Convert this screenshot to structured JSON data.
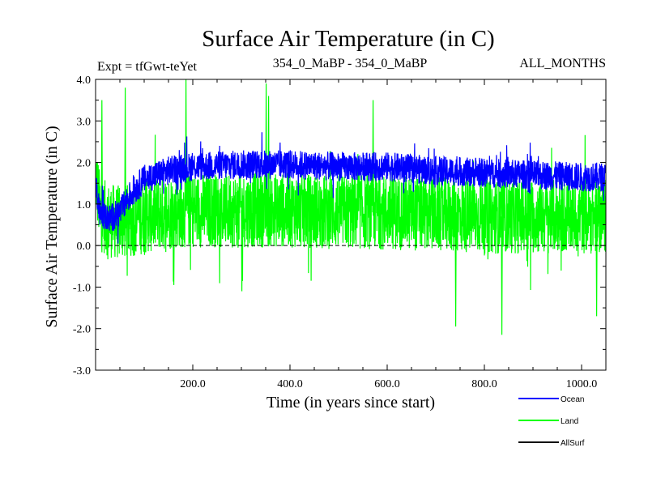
{
  "chart_data": {
    "type": "line",
    "title": "Surface Air Temperature (in C)",
    "subtitle_left": "Expt = tfGwt-teYet",
    "subtitle_center": "354_0_MaBP - 354_0_MaBP",
    "subtitle_right": "ALL_MONTHS",
    "xlabel": "Time (in years since start)",
    "ylabel": "Surface Air Temperature (in C)",
    "xlim": [
      0,
      1050
    ],
    "ylim": [
      -3.0,
      4.0
    ],
    "xticks": [
      200,
      400,
      600,
      800,
      1000
    ],
    "xtick_labels": [
      "200.0",
      "400.0",
      "600.0",
      "800.0",
      "1000.0"
    ],
    "yticks": [
      -3,
      -2,
      -1,
      0,
      1,
      2,
      3,
      4
    ],
    "ytick_labels": [
      "-3.0",
      "-2.0",
      "-1.0",
      "0.0",
      "1.0",
      "2.0",
      "3.0",
      "4.0"
    ],
    "reference_line_y": 0.0,
    "legend_position": "bottom-right",
    "series": [
      {
        "name": "Ocean",
        "color": "#0000ff",
        "mean_x": [
          0,
          10,
          30,
          50,
          70,
          100,
          150,
          200,
          300,
          400,
          500,
          600,
          700,
          800,
          900,
          1000,
          1050
        ],
        "mean_y": [
          1.5,
          0.75,
          0.65,
          0.8,
          1.2,
          1.6,
          1.8,
          1.9,
          1.95,
          1.95,
          1.9,
          1.9,
          1.8,
          1.75,
          1.7,
          1.65,
          1.65
        ],
        "band_halfwidth": 0.35
      },
      {
        "name": "Land",
        "color": "#00ff00",
        "mean_x": [
          0,
          10,
          30,
          50,
          70,
          100,
          150,
          200,
          300,
          400,
          500,
          600,
          700,
          800,
          900,
          1000,
          1050
        ],
        "mean_y": [
          1.7,
          0.75,
          0.6,
          0.55,
          0.6,
          0.7,
          0.8,
          0.85,
          0.85,
          0.85,
          0.8,
          0.8,
          0.75,
          0.7,
          0.7,
          0.7,
          0.7
        ],
        "band_halfwidth": 0.9,
        "extremes": [
          [
            12,
            3.5
          ],
          [
            60,
            3.8
          ],
          [
            185,
            4.0
          ],
          [
            350,
            3.9
          ],
          [
            355,
            3.6
          ],
          [
            570,
            3.5
          ],
          [
            740,
            -1.95
          ],
          [
            835,
            -2.15
          ],
          [
            1030,
            -1.7
          ],
          [
            300,
            -1.1
          ],
          [
            160,
            -0.95
          ]
        ]
      },
      {
        "name": "AllSurf",
        "color": "#000000",
        "mean_x": [],
        "mean_y": []
      }
    ]
  }
}
